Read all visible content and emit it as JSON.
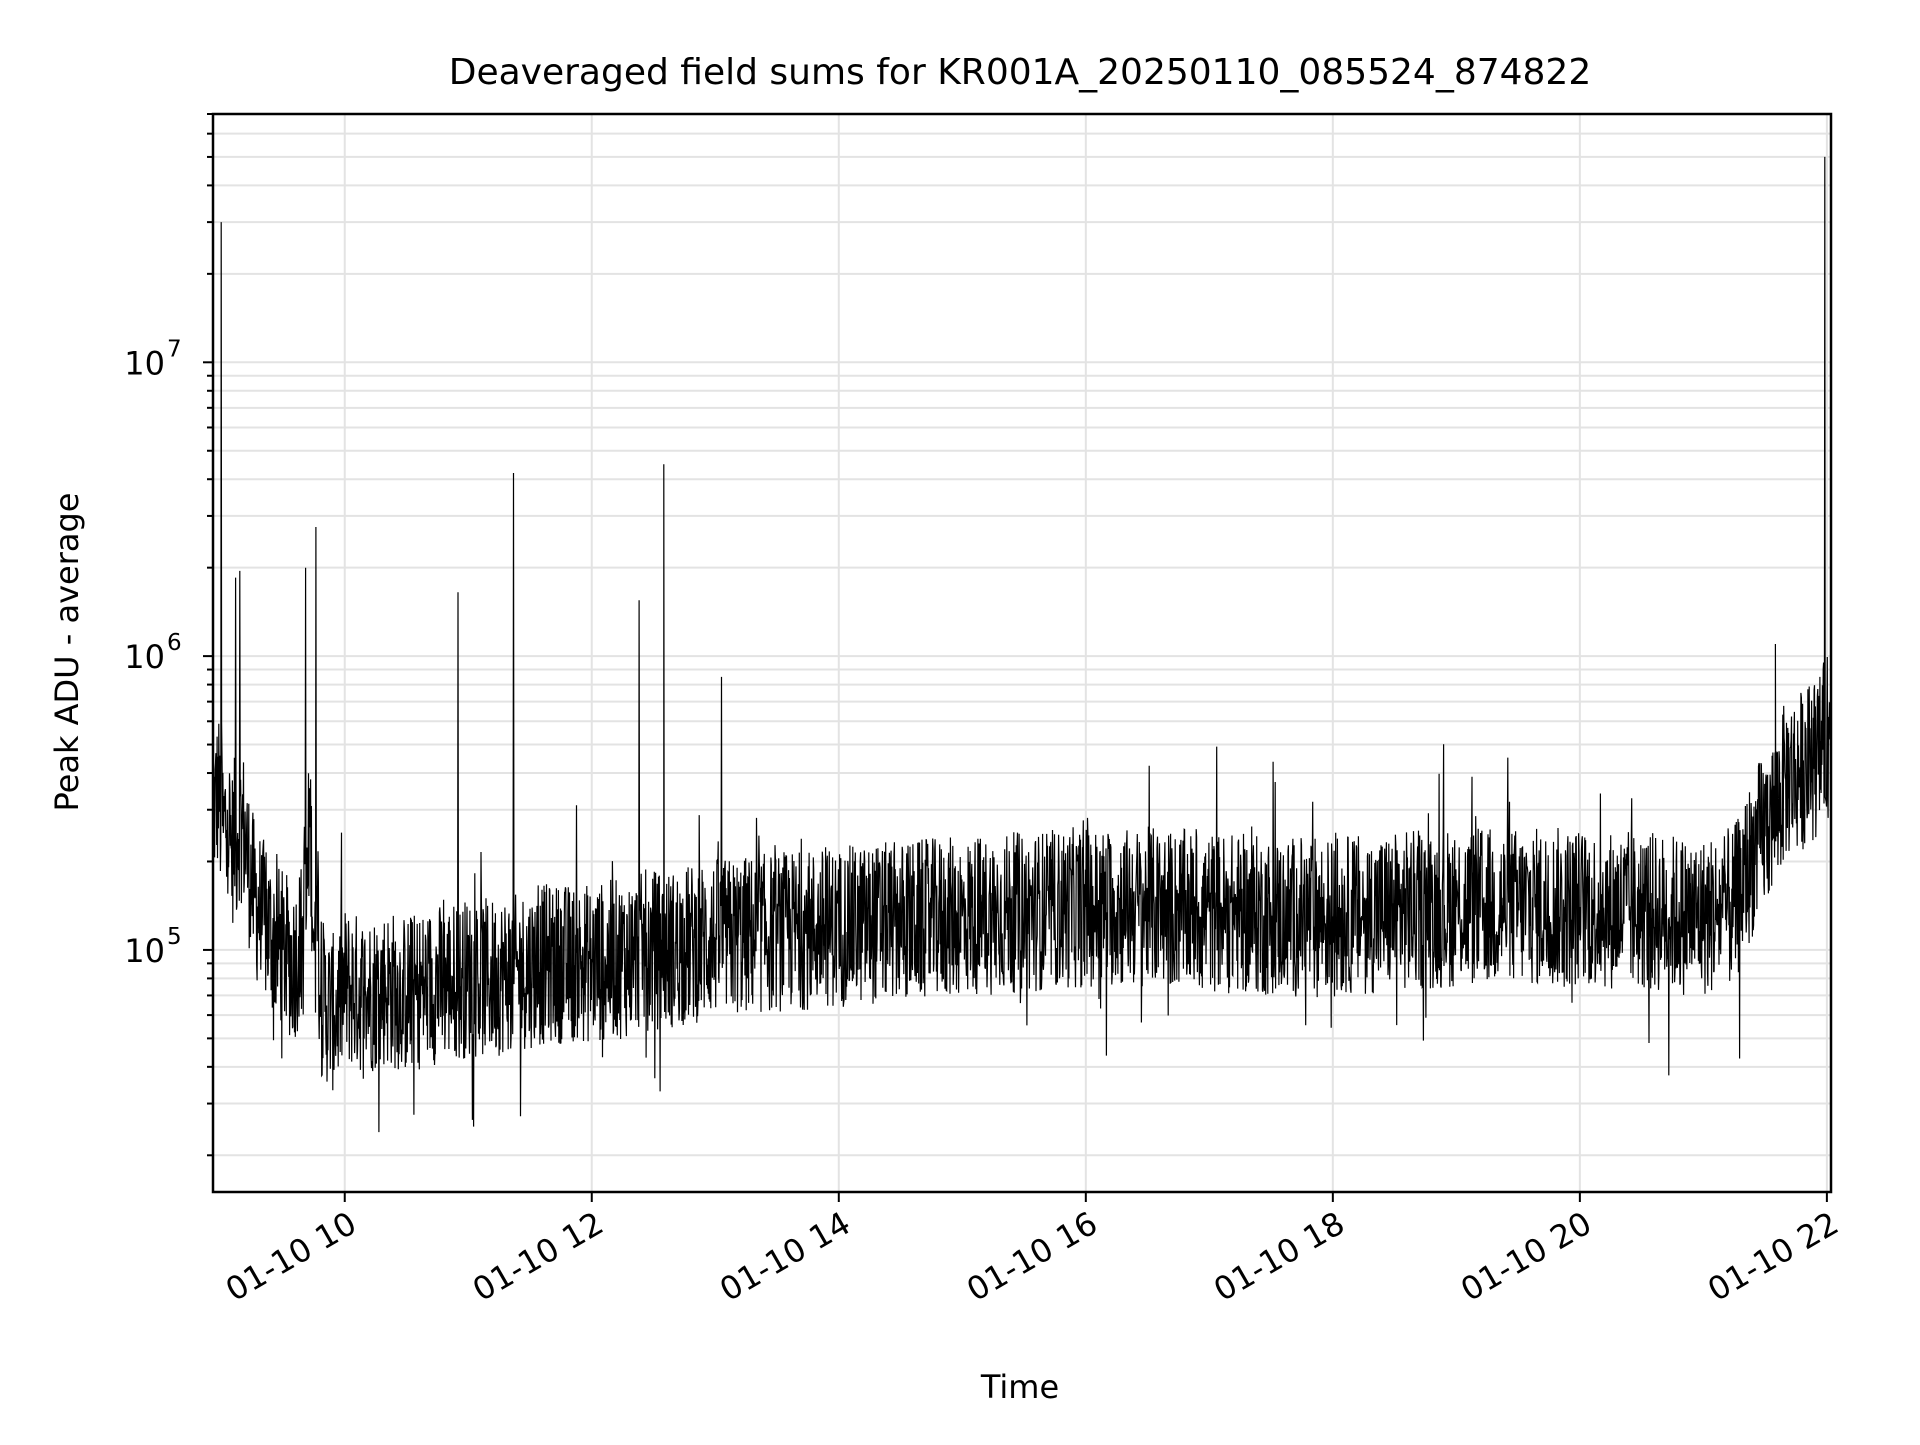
{
  "chart_data": {
    "type": "line",
    "title": "Deaveraged field sums for KR001A_20250110_085524_874822",
    "xlabel": "Time",
    "ylabel": "Peak ADU - average",
    "x_tick_labels": [
      "01-10 10",
      "01-10 12",
      "01-10 14",
      "01-10 16",
      "01-10 18",
      "01-10 20",
      "01-10 22"
    ],
    "x_tick_hours": [
      10,
      12,
      14,
      16,
      18,
      20,
      22
    ],
    "xlim": [
      "2025-01-10 08:56",
      "2025-01-10 22:02"
    ],
    "yscale": "log",
    "ylim": [
      15000,
      70000000
    ],
    "y_ticks": [
      {
        "value": 100000,
        "base": "10",
        "exp": "5"
      },
      {
        "value": 1000000,
        "base": "10",
        "exp": "6"
      },
      {
        "value": 10000000,
        "base": "10",
        "exp": "7"
      }
    ],
    "grid": true,
    "line_color": "#000000",
    "grid_color": "#e3e3e3",
    "series": [
      {
        "points": [
          [
            "2025-01-10 08:56",
            300000
          ],
          [
            "2025-01-10 08:59",
            350000
          ],
          [
            "2025-01-10 09:00",
            30000000
          ],
          [
            "2025-01-10 09:01",
            250000
          ],
          [
            "2025-01-10 09:03",
            300000
          ],
          [
            "2025-01-10 09:05",
            220000
          ],
          [
            "2025-01-10 09:07",
            1850000
          ],
          [
            "2025-01-10 09:08",
            250000
          ],
          [
            "2025-01-10 09:09",
            1950000
          ],
          [
            "2025-01-10 09:10",
            280000
          ],
          [
            "2025-01-10 09:13",
            200000
          ],
          [
            "2025-01-10 09:16",
            150000
          ],
          [
            "2025-01-10 09:20",
            130000
          ],
          [
            "2025-01-10 09:25",
            110000
          ],
          [
            "2025-01-10 09:30",
            100000
          ],
          [
            "2025-01-10 09:35",
            90000
          ],
          [
            "2025-01-10 09:40",
            110000
          ],
          [
            "2025-01-10 09:41",
            2000000
          ],
          [
            "2025-01-10 09:43",
            300000
          ],
          [
            "2025-01-10 09:46",
            2750000
          ],
          [
            "2025-01-10 09:48",
            70000
          ],
          [
            "2025-01-10 09:55",
            60000
          ],
          [
            "2025-01-10 10:00",
            75000
          ],
          [
            "2025-01-10 10:10",
            70000
          ],
          [
            "2025-01-10 10:20",
            75000
          ],
          [
            "2025-01-10 10:30",
            70000
          ],
          [
            "2025-01-10 10:40",
            75000
          ],
          [
            "2025-01-10 10:55",
            1650000
          ],
          [
            "2025-01-10 10:57",
            80000
          ],
          [
            "2025-01-10 11:10",
            80000
          ],
          [
            "2025-01-10 11:22",
            4200000
          ],
          [
            "2025-01-10 11:24",
            85000
          ],
          [
            "2025-01-10 11:40",
            90000
          ],
          [
            "2025-01-10 12:00",
            90000
          ],
          [
            "2025-01-10 12:20",
            95000
          ],
          [
            "2025-01-10 12:23",
            1550000
          ],
          [
            "2025-01-10 12:25",
            100000
          ],
          [
            "2025-01-10 12:35",
            100000
          ],
          [
            "2025-01-10 12:35",
            4500000
          ],
          [
            "2025-01-10 12:37",
            100000
          ],
          [
            "2025-01-10 13:00",
            110000
          ],
          [
            "2025-01-10 13:03",
            850000
          ],
          [
            "2025-01-10 13:05",
            110000
          ],
          [
            "2025-01-10 13:30",
            115000
          ],
          [
            "2025-01-10 14:00",
            120000
          ],
          [
            "2025-01-10 14:30",
            125000
          ],
          [
            "2025-01-10 15:00",
            130000
          ],
          [
            "2025-01-10 15:30",
            135000
          ],
          [
            "2025-01-10 16:00",
            140000
          ],
          [
            "2025-01-10 16:30",
            140000
          ],
          [
            "2025-01-10 17:00",
            135000
          ],
          [
            "2025-01-10 17:30",
            130000
          ],
          [
            "2025-01-10 18:00",
            130000
          ],
          [
            "2025-01-10 18:30",
            135000
          ],
          [
            "2025-01-10 19:00",
            140000
          ],
          [
            "2025-01-10 19:30",
            140000
          ],
          [
            "2025-01-10 20:00",
            140000
          ],
          [
            "2025-01-10 20:30",
            135000
          ],
          [
            "2025-01-10 21:00",
            130000
          ],
          [
            "2025-01-10 21:15",
            140000
          ],
          [
            "2025-01-10 21:25",
            220000
          ],
          [
            "2025-01-10 21:35",
            300000
          ],
          [
            "2025-01-10 21:35",
            1100000
          ],
          [
            "2025-01-10 21:40",
            380000
          ],
          [
            "2025-01-10 21:50",
            420000
          ],
          [
            "2025-01-10 21:58",
            480000
          ],
          [
            "2025-01-10 21:59",
            50000000
          ],
          [
            "2025-01-10 22:00",
            550000
          ],
          [
            "2025-01-10 22:02",
            480000
          ]
        ]
      }
    ]
  }
}
